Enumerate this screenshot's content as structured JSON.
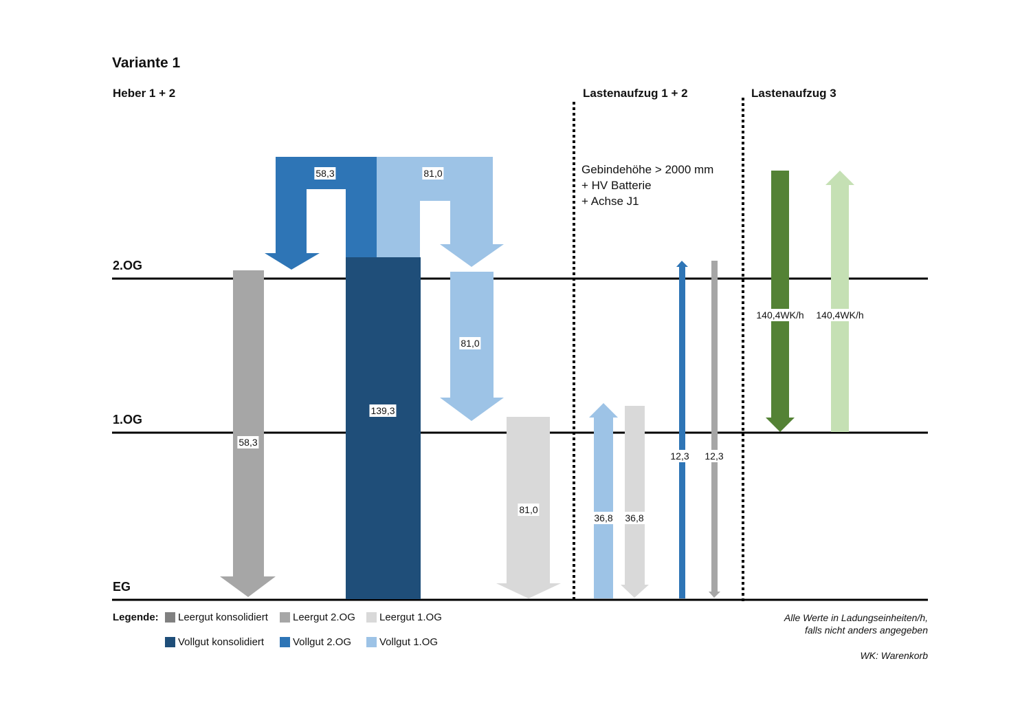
{
  "title": "Variante 1",
  "sections": {
    "heber": "Heber 1 + 2",
    "lastenaufzug_12": "Lastenaufzug 1 + 2",
    "lastenaufzug_3": "Lastenaufzug 3"
  },
  "floors": {
    "og2": "2.OG",
    "og1": "1.OG",
    "eg": "EG"
  },
  "note": [
    "Gebindehöhe > 2000 mm",
    "+ HV Batterie",
    "+ Achse J1"
  ],
  "flows": {
    "vollgut_2og_top": "58,3",
    "vollgut_1og_top": "81,0",
    "vollgut_1og_mid": "81,0",
    "vollgut_konsolidiert": "139,3",
    "leergut_2og": "58,3",
    "leergut_1og": "81,0",
    "aufzug_vollgut_1og": "36,8",
    "aufzug_leergut_1og": "36,8",
    "aufzug_vollgut_2og": "12,3",
    "aufzug_leergut_2og": "12,3",
    "aufzug3_down": "140,4WK/h",
    "aufzug3_up": "140,4WK/h"
  },
  "legend": {
    "title": "Legende:",
    "items": [
      {
        "label": "Leergut konsolidiert",
        "color": "#808080"
      },
      {
        "label": "Leergut 2.OG",
        "color": "#a6a6a6"
      },
      {
        "label": "Leergut 1.OG",
        "color": "#d9d9d9"
      },
      {
        "label": "Vollgut konsolidiert",
        "color": "#1f4e79"
      },
      {
        "label": "Vollgut 2.OG",
        "color": "#2e75b6"
      },
      {
        "label": "Vollgut 1.OG",
        "color": "#9dc3e6"
      }
    ]
  },
  "footnotes": {
    "line1": "Alle Werte in Ladungseinheiten/h,",
    "line2": "falls nicht anders angegeben",
    "wk": "WK: Warenkorb"
  },
  "colors": {
    "dark_blue": "#1f4e79",
    "mid_blue": "#2e75b6",
    "light_blue": "#9dc3e6",
    "mid_grey": "#a6a6a6",
    "light_grey": "#d9d9d9",
    "dark_green": "#548235",
    "light_green": "#c5e0b4"
  }
}
